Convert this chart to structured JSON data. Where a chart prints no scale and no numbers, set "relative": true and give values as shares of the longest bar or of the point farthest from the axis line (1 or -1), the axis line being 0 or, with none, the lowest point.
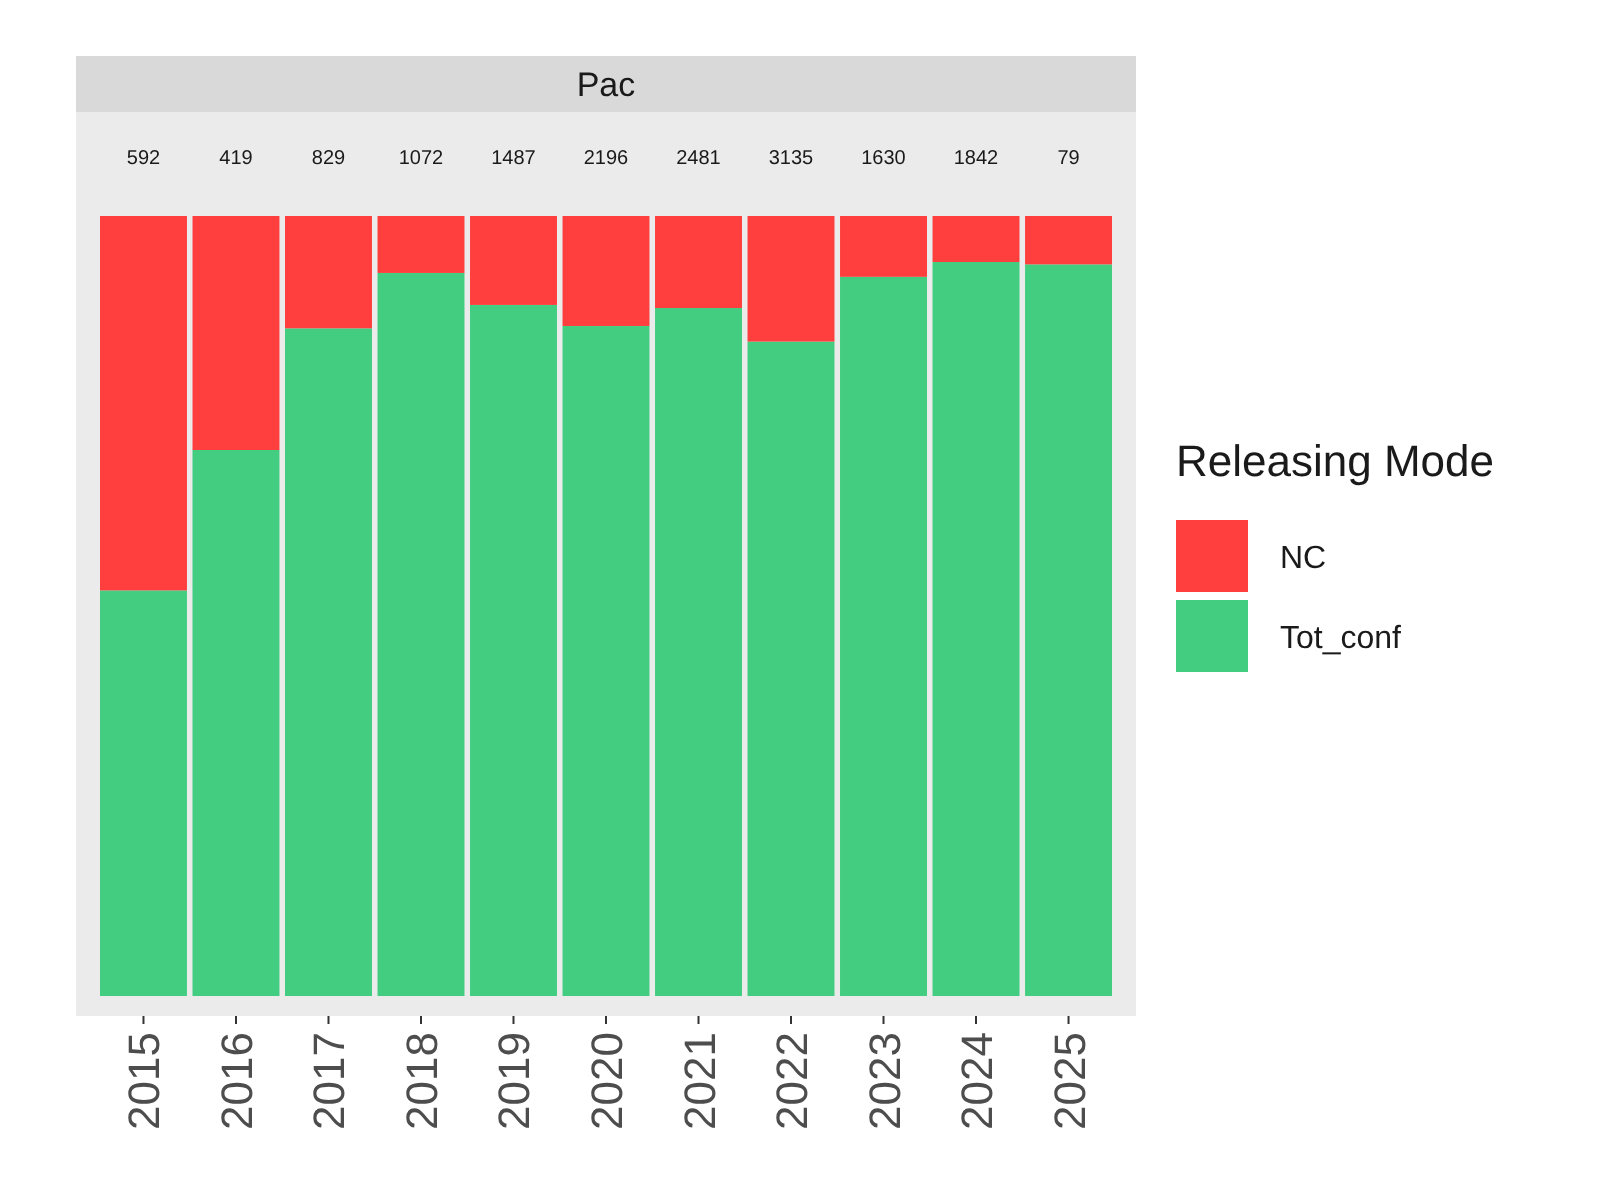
{
  "chart_data": {
    "type": "bar",
    "title": "Pac",
    "stacked": true,
    "relative": true,
    "legend": "right",
    "legend_title": "Releasing Mode",
    "categories": [
      "2015",
      "2016",
      "2017",
      "2018",
      "2019",
      "2020",
      "2021",
      "2022",
      "2023",
      "2024",
      "2025"
    ],
    "series": [
      {
        "name": "Tot_conf",
        "color": "#43cd80",
        "values": [
          0.52,
          0.7,
          0.856,
          0.927,
          0.886,
          0.859,
          0.882,
          0.839,
          0.922,
          0.941,
          0.938
        ]
      },
      {
        "name": "NC",
        "color": "#ff3e3e",
        "values": [
          0.48,
          0.3,
          0.144,
          0.073,
          0.114,
          0.141,
          0.118,
          0.161,
          0.078,
          0.059,
          0.062
        ]
      }
    ],
    "annotations": [
      "592",
      "419",
      "829",
      "1072",
      "1487",
      "2196",
      "2481",
      "3135",
      "1630",
      "1842",
      "79"
    ]
  }
}
